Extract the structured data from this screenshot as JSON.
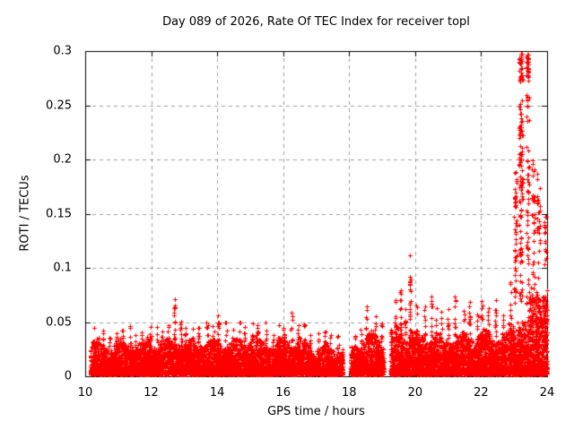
{
  "chart_data": {
    "type": "scatter",
    "title": "Day 089 of 2026, Rate Of TEC Index for receiver topl",
    "xlabel": "GPS time / hours",
    "ylabel": "ROTI / TECUs",
    "xlim": [
      10,
      24
    ],
    "ylim": [
      0,
      0.3
    ],
    "xtick_values": [
      10,
      12,
      14,
      16,
      18,
      20,
      22,
      24
    ],
    "xtick_labels": [
      "10",
      "12",
      "14",
      "16",
      "18",
      "20",
      "22",
      "24"
    ],
    "ytick_values": [
      0,
      0.05,
      0.1,
      0.15,
      0.2,
      0.25,
      0.3
    ],
    "ytick_labels": [
      "0",
      "0.05",
      "0.1",
      "0.15",
      "0.2",
      "0.25",
      "0.3"
    ],
    "grid": true,
    "legend": null,
    "marker": {
      "shape": "plus",
      "size": 5,
      "color": "#ff0000"
    },
    "background_color": "#ffffff",
    "axis_color": "#000000",
    "grid_color": "#a0a0a0",
    "data_start_hour": 10.15,
    "data_end_hour": 24.0,
    "data_gaps_hours": [
      [
        17.82,
        18.04
      ],
      [
        19.05,
        19.25
      ]
    ],
    "notable_features": [
      "dense noise band 0.005-0.04 TECU from 10.15 h to 19 h",
      "small spike to ~0.076 near 12.65 h",
      "isolated spike to ~0.115 near 19.85 h",
      "elevated activity with spikes 0.05-0.09 from 19.25 h to 23 h",
      "major spike reaching ~0.30 between 23.1 h and 23.45 h",
      "elevated band up to ~0.1-0.2 from 23.45 h to 24 h"
    ],
    "envelope_bins_columns": [
      "t_start",
      "t_end",
      "band_top",
      "spike_max",
      "n_band_points",
      "n_spike_points"
    ],
    "envelope_bins": [
      [
        10.15,
        10.45,
        0.036,
        0.05,
        220,
        6
      ],
      [
        10.45,
        10.65,
        0.034,
        0.044,
        150,
        5
      ],
      [
        10.65,
        10.85,
        0.033,
        0.043,
        150,
        5
      ],
      [
        10.85,
        11.05,
        0.035,
        0.046,
        150,
        6
      ],
      [
        11.05,
        11.25,
        0.033,
        0.043,
        150,
        5
      ],
      [
        11.25,
        11.45,
        0.035,
        0.047,
        150,
        6
      ],
      [
        11.45,
        11.65,
        0.032,
        0.042,
        150,
        5
      ],
      [
        11.65,
        11.85,
        0.034,
        0.044,
        150,
        5
      ],
      [
        11.85,
        12.05,
        0.036,
        0.046,
        150,
        6
      ],
      [
        12.05,
        12.25,
        0.036,
        0.047,
        150,
        6
      ],
      [
        12.25,
        12.45,
        0.036,
        0.048,
        150,
        6
      ],
      [
        12.45,
        12.6,
        0.038,
        0.052,
        112,
        5
      ],
      [
        12.6,
        12.75,
        0.04,
        0.076,
        112,
        16
      ],
      [
        12.75,
        12.95,
        0.038,
        0.056,
        150,
        8
      ],
      [
        12.95,
        13.15,
        0.035,
        0.047,
        150,
        6
      ],
      [
        13.15,
        13.35,
        0.034,
        0.045,
        150,
        5
      ],
      [
        13.35,
        13.55,
        0.037,
        0.055,
        150,
        8
      ],
      [
        13.55,
        13.75,
        0.035,
        0.05,
        150,
        6
      ],
      [
        13.75,
        13.95,
        0.035,
        0.047,
        150,
        6
      ],
      [
        13.95,
        14.15,
        0.039,
        0.058,
        150,
        9
      ],
      [
        14.15,
        14.35,
        0.036,
        0.05,
        150,
        6
      ],
      [
        14.35,
        14.55,
        0.034,
        0.047,
        150,
        5
      ],
      [
        14.55,
        14.75,
        0.037,
        0.052,
        150,
        7
      ],
      [
        14.75,
        14.95,
        0.037,
        0.05,
        150,
        6
      ],
      [
        14.95,
        15.15,
        0.039,
        0.055,
        150,
        8
      ],
      [
        15.15,
        15.35,
        0.036,
        0.048,
        150,
        6
      ],
      [
        15.35,
        15.55,
        0.035,
        0.05,
        150,
        6
      ],
      [
        15.55,
        15.75,
        0.033,
        0.044,
        150,
        5
      ],
      [
        15.75,
        15.95,
        0.034,
        0.047,
        150,
        5
      ],
      [
        15.95,
        16.15,
        0.037,
        0.051,
        150,
        7
      ],
      [
        16.15,
        16.35,
        0.039,
        0.06,
        150,
        10
      ],
      [
        16.35,
        16.55,
        0.037,
        0.054,
        150,
        7
      ],
      [
        16.55,
        16.75,
        0.034,
        0.049,
        150,
        6
      ],
      [
        16.75,
        16.95,
        0.032,
        0.044,
        150,
        5
      ],
      [
        16.95,
        17.15,
        0.03,
        0.04,
        150,
        4
      ],
      [
        17.15,
        17.35,
        0.031,
        0.042,
        150,
        5
      ],
      [
        17.35,
        17.55,
        0.029,
        0.04,
        150,
        4
      ],
      [
        17.55,
        17.82,
        0.028,
        0.038,
        200,
        5
      ],
      [
        18.04,
        18.25,
        0.031,
        0.046,
        158,
        6
      ],
      [
        18.25,
        18.45,
        0.036,
        0.052,
        150,
        7
      ],
      [
        18.45,
        18.65,
        0.041,
        0.065,
        150,
        10
      ],
      [
        18.65,
        18.85,
        0.041,
        0.06,
        150,
        9
      ],
      [
        18.85,
        19.05,
        0.038,
        0.055,
        150,
        7
      ],
      [
        19.25,
        19.45,
        0.046,
        0.075,
        160,
        12
      ],
      [
        19.45,
        19.65,
        0.048,
        0.085,
        160,
        14
      ],
      [
        19.65,
        19.8,
        0.044,
        0.07,
        120,
        8
      ],
      [
        19.8,
        19.95,
        0.048,
        0.115,
        120,
        20
      ],
      [
        19.95,
        20.15,
        0.04,
        0.07,
        160,
        10
      ],
      [
        20.15,
        20.35,
        0.04,
        0.065,
        160,
        9
      ],
      [
        20.35,
        20.55,
        0.042,
        0.075,
        160,
        11
      ],
      [
        20.55,
        20.75,
        0.04,
        0.065,
        160,
        9
      ],
      [
        20.75,
        20.95,
        0.038,
        0.06,
        160,
        8
      ],
      [
        20.95,
        21.15,
        0.04,
        0.068,
        160,
        10
      ],
      [
        21.15,
        21.35,
        0.044,
        0.074,
        160,
        11
      ],
      [
        21.35,
        21.55,
        0.04,
        0.064,
        160,
        9
      ],
      [
        21.55,
        21.75,
        0.044,
        0.07,
        160,
        10
      ],
      [
        21.75,
        21.95,
        0.04,
        0.06,
        160,
        8
      ],
      [
        21.95,
        22.15,
        0.044,
        0.074,
        160,
        11
      ],
      [
        22.15,
        22.35,
        0.04,
        0.064,
        160,
        9
      ],
      [
        22.35,
        22.55,
        0.044,
        0.08,
        160,
        12
      ],
      [
        22.55,
        22.75,
        0.04,
        0.062,
        160,
        8
      ],
      [
        22.75,
        22.95,
        0.046,
        0.09,
        160,
        14
      ],
      [
        22.95,
        23.1,
        0.055,
        0.19,
        130,
        45
      ],
      [
        23.1,
        23.3,
        0.065,
        0.3,
        180,
        130
      ],
      [
        23.3,
        23.45,
        0.055,
        0.285,
        140,
        85
      ],
      [
        23.45,
        23.65,
        0.08,
        0.2,
        210,
        30
      ],
      [
        23.65,
        23.85,
        0.09,
        0.19,
        210,
        26
      ],
      [
        23.85,
        24.0,
        0.1,
        0.15,
        170,
        18
      ]
    ]
  }
}
